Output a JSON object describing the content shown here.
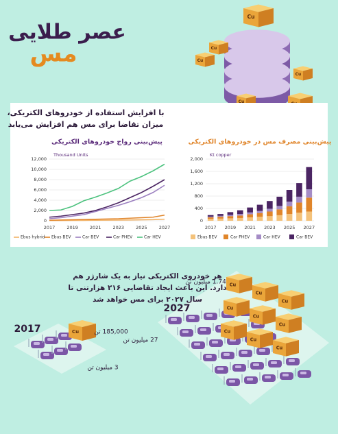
{
  "header": {
    "title": "عصر طلایی",
    "title_accent": "مس"
  },
  "intro": [
    "با افزایش استفاده از خودروهای الکتریکی،",
    "میزان تقاضا برای مس هم افزایش می‌یابد"
  ],
  "cube_label": "Cu",
  "chart_data": [
    {
      "type": "line",
      "title": "پیش‌بینی رواج خودروهای الکتریکی",
      "unit_label": "Thousand Units",
      "x": [
        2017,
        2018,
        2019,
        2020,
        2021,
        2022,
        2023,
        2024,
        2025,
        2026,
        2027
      ],
      "xlim": [
        2017,
        2027
      ],
      "xticks": [
        2017,
        2019,
        2021,
        2023,
        2025,
        2027
      ],
      "ylim": [
        0,
        12000
      ],
      "yticks": [
        0,
        {
          "value": 2000,
          "label": "2,000"
        },
        {
          "value": 4000,
          "label": "4,000"
        },
        {
          "value": 6000,
          "label": "6,000"
        },
        {
          "value": 8000,
          "label": "8,000"
        },
        {
          "value": 10000,
          "label": "10,000"
        },
        {
          "value": 12000,
          "label": "12,000"
        }
      ],
      "grid": true,
      "series": [
        {
          "name": "Ebus hybrid",
          "color": "#f2b266",
          "values": [
            50,
            60,
            70,
            80,
            100,
            120,
            140,
            160,
            190,
            220,
            300
          ]
        },
        {
          "name": "Ebus BEV",
          "color": "#e0852a",
          "values": [
            100,
            150,
            200,
            250,
            300,
            350,
            400,
            500,
            600,
            700,
            1100
          ]
        },
        {
          "name": "Car BEV",
          "color": "#9b7fc0",
          "values": [
            400,
            600,
            900,
            1200,
            1800,
            2400,
            3000,
            3700,
            4500,
            5500,
            6900
          ]
        },
        {
          "name": "Car PHEV",
          "color": "#4b2563",
          "values": [
            700,
            900,
            1200,
            1500,
            2000,
            2700,
            3500,
            4500,
            5500,
            6700,
            8000
          ]
        },
        {
          "name": "Car HEV",
          "color": "#4cc27e",
          "values": [
            2000,
            2100,
            2800,
            3900,
            4600,
            5400,
            6300,
            7700,
            8600,
            9700,
            11000
          ]
        }
      ]
    },
    {
      "type": "bar",
      "stacked": true,
      "title": "پیش‌بینی مصرف مس در خودروهای الکتریکی",
      "unit_label": "Kt copper",
      "categories": [
        "2017",
        null,
        "2019",
        null,
        "2021",
        null,
        "2023",
        null,
        "2025",
        null,
        "2027"
      ],
      "ylim": [
        0,
        2000
      ],
      "yticks": [
        0,
        400,
        800,
        {
          "value": 1200,
          "label": "1,200"
        },
        {
          "value": 1600,
          "label": "1,600"
        },
        {
          "value": 2000,
          "label": "2,000"
        }
      ],
      "grid": true,
      "series": [
        {
          "name": "Ebus BEV",
          "color": "#f4c27a",
          "values": [
            60,
            70,
            80,
            90,
            110,
            130,
            150,
            180,
            220,
            260,
            300
          ]
        },
        {
          "name": "Car PHEV",
          "color": "#e0852a",
          "values": [
            50,
            60,
            70,
            80,
            100,
            120,
            150,
            190,
            250,
            330,
            450
          ]
        },
        {
          "name": "Car HEV",
          "color": "#a58cc6",
          "values": [
            25,
            30,
            40,
            50,
            60,
            70,
            90,
            110,
            150,
            190,
            270
          ]
        },
        {
          "name": "Car BEV",
          "color": "#4b2563",
          "values": [
            50,
            60,
            90,
            120,
            160,
            200,
            250,
            300,
            380,
            440,
            720
          ]
        }
      ]
    }
  ],
  "charging": {
    "text": [
      "هر خودروی الکتریکی نیاز به یک شارژر هم",
      "دارد. این باعث ایجاد تقاضایی ۲۱۶ هزارتنی تا",
      "سال ۲۰۲۷ برای مس خواهد شد"
    ],
    "year_2017": "2017",
    "year_2027": "2027",
    "copper_2017": "185,000 تن",
    "cars_2017": "3 میلیون تن",
    "cars_2027": "27 میلیون تن",
    "copper_2027": "1.74 میلیون تن"
  }
}
